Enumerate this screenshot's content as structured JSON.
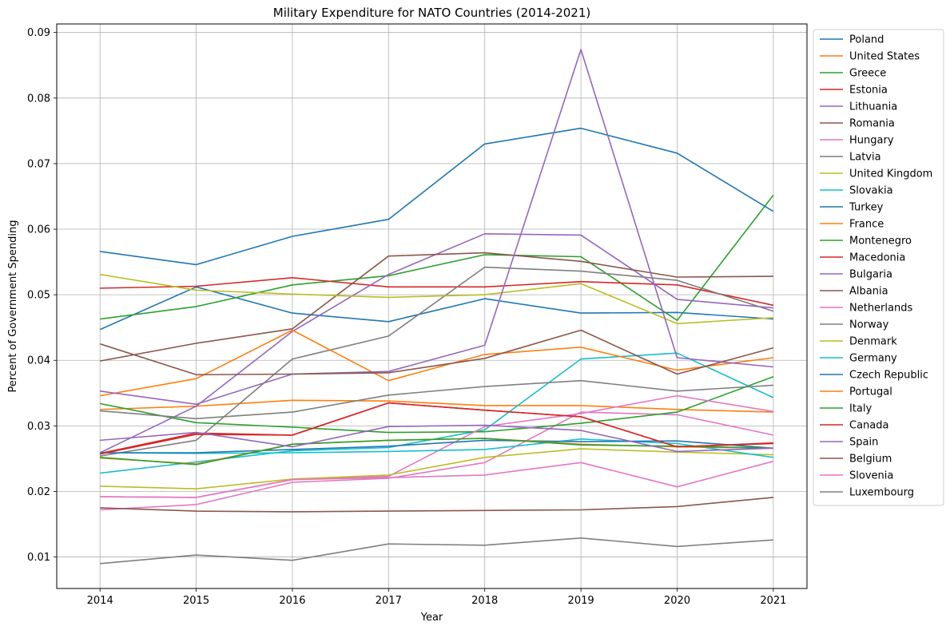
{
  "chart_data": {
    "type": "line",
    "title": "Military Expenditure for NATO Countries (2014-2021)",
    "xlabel": "Year",
    "ylabel": "Percent of Government Spending",
    "x": [
      2014,
      2015,
      2016,
      2017,
      2018,
      2019,
      2020,
      2021
    ],
    "xlim": [
      2013.55,
      2021.35
    ],
    "ylim": [
      0.0052,
      0.0913
    ],
    "yticks": [
      "0.01",
      "0.02",
      "0.03",
      "0.04",
      "0.05",
      "0.06",
      "0.07",
      "0.08",
      "0.09"
    ],
    "xticks": [
      "2014",
      "2015",
      "2016",
      "2017",
      "2018",
      "2019",
      "2020",
      "2021"
    ],
    "grid": true,
    "legend_position": "outside-right",
    "series": [
      {
        "name": "Poland",
        "color": "#1f77b4",
        "values": [
          0.0447,
          0.0512,
          0.0472,
          0.0459,
          0.0494,
          0.0472,
          0.0473,
          0.0463
        ]
      },
      {
        "name": "United States",
        "color": "#ff7f0e",
        "values": [
          0.0325,
          0.033,
          0.0339,
          0.0338,
          0.0331,
          0.0331,
          0.0325,
          0.0321
        ]
      },
      {
        "name": "Greece",
        "color": "#2ca02c",
        "values": [
          0.0463,
          0.0482,
          0.0515,
          0.0529,
          0.0561,
          0.0558,
          0.0461,
          0.0652
        ]
      },
      {
        "name": "Estonia",
        "color": "#d62728",
        "values": [
          0.051,
          0.0513,
          0.0526,
          0.0512,
          0.0512,
          0.052,
          0.0515,
          0.0484
        ]
      },
      {
        "name": "Lithuania",
        "color": "#9467bd",
        "values": [
          0.0259,
          0.033,
          0.0444,
          0.0531,
          0.0593,
          0.0591,
          0.0493,
          0.048
        ]
      },
      {
        "name": "Romania",
        "color": "#8c564b",
        "values": [
          0.0399,
          0.0426,
          0.0448,
          0.0559,
          0.0564,
          0.0551,
          0.0527,
          0.0528
        ]
      },
      {
        "name": "Hungary",
        "color": "#e377c2",
        "values": [
          0.0172,
          0.018,
          0.0214,
          0.022,
          0.0244,
          0.0321,
          0.0317,
          0.0286
        ]
      },
      {
        "name": "Latvia",
        "color": "#7f7f7f",
        "values": [
          0.0254,
          0.0278,
          0.0402,
          0.0437,
          0.0542,
          0.0536,
          0.0522,
          0.0475
        ]
      },
      {
        "name": "United Kingdom",
        "color": "#bcbd22",
        "values": [
          0.0531,
          0.0507,
          0.0501,
          0.0496,
          0.05,
          0.0517,
          0.0456,
          0.0465
        ]
      },
      {
        "name": "Slovakia",
        "color": "#17becf",
        "values": [
          0.0228,
          0.0245,
          0.0262,
          0.0267,
          0.0294,
          0.0402,
          0.0411,
          0.0343
        ]
      },
      {
        "name": "Turkey",
        "color": "#1f77b4",
        "values": [
          0.0566,
          0.0546,
          0.0589,
          0.0615,
          0.073,
          0.0754,
          0.0716,
          0.0627
        ]
      },
      {
        "name": "France",
        "color": "#ff7f0e",
        "values": [
          0.0346,
          0.0372,
          0.0446,
          0.0369,
          0.0409,
          0.042,
          0.0385,
          0.0404
        ]
      },
      {
        "name": "Montenegro",
        "color": "#2ca02c",
        "values": [
          0.0334,
          0.0305,
          0.0298,
          0.029,
          0.0291,
          0.0304,
          0.0321,
          0.0375
        ]
      },
      {
        "name": "Macedonia",
        "color": "#d62728",
        "values": [
          0.0258,
          0.0289,
          0.0286,
          0.0335,
          0.0324,
          0.0314,
          0.0268,
          0.0273
        ]
      },
      {
        "name": "Bulgaria",
        "color": "#9467bd",
        "values": [
          0.0353,
          0.0333,
          0.0379,
          0.0383,
          0.0423,
          0.0874,
          0.0404,
          0.039
        ]
      },
      {
        "name": "Albania",
        "color": "#8c564b",
        "values": [
          0.0425,
          0.0378,
          0.0379,
          0.0381,
          0.0403,
          0.0446,
          0.0379,
          0.0419
        ]
      },
      {
        "name": "Netherlands",
        "color": "#e377c2",
        "values": [
          0.0192,
          0.0191,
          0.0218,
          0.0223,
          0.0299,
          0.0319,
          0.0346,
          0.0322
        ]
      },
      {
        "name": "Norway",
        "color": "#7f7f7f",
        "values": [
          0.0323,
          0.0311,
          0.0321,
          0.0347,
          0.036,
          0.0369,
          0.0353,
          0.0362
        ]
      },
      {
        "name": "Denmark",
        "color": "#bcbd22",
        "values": [
          0.0208,
          0.0204,
          0.0219,
          0.0225,
          0.0252,
          0.0265,
          0.026,
          0.0256
        ]
      },
      {
        "name": "Germany",
        "color": "#17becf",
        "values": [
          0.0259,
          0.0258,
          0.0259,
          0.0261,
          0.0264,
          0.028,
          0.0273,
          0.0252
        ]
      },
      {
        "name": "Czech Republic",
        "color": "#1f77b4",
        "values": [
          0.0259,
          0.0259,
          0.0264,
          0.0269,
          0.0278,
          0.0276,
          0.0277,
          0.0266
        ]
      },
      {
        "name": "Portugal",
        "color": "#ff7f0e",
        "values": [
          0.0251,
          0.0242,
          0.0272,
          0.0278,
          0.0281,
          0.0272,
          0.0268,
          0.0266
        ]
      },
      {
        "name": "Italy",
        "color": "#2ca02c",
        "values": [
          0.0252,
          0.0241,
          0.0272,
          0.0278,
          0.0281,
          0.0271,
          0.0269,
          0.0266
        ]
      },
      {
        "name": "Canada",
        "color": "#d62728",
        "values": [
          0.0257,
          0.0287,
          0.0286,
          0.0335,
          0.0324,
          0.0314,
          0.0268,
          0.0274
        ]
      },
      {
        "name": "Spain",
        "color": "#9467bd",
        "values": [
          0.0278,
          0.029,
          0.0268,
          0.0299,
          0.0301,
          0.0293,
          0.0261,
          0.0266
        ]
      },
      {
        "name": "Belgium",
        "color": "#8c564b",
        "values": [
          0.0175,
          0.017,
          0.0169,
          0.017,
          0.0171,
          0.0172,
          0.0177,
          0.0191
        ]
      },
      {
        "name": "Slovenia",
        "color": "#e377c2",
        "values": [
          0.0192,
          0.0191,
          0.0218,
          0.0221,
          0.0225,
          0.0244,
          0.0207,
          0.0246
        ]
      },
      {
        "name": "Luxembourg",
        "color": "#7f7f7f",
        "values": [
          0.009,
          0.0103,
          0.0095,
          0.012,
          0.0118,
          0.0129,
          0.0116,
          0.0126
        ]
      }
    ]
  }
}
